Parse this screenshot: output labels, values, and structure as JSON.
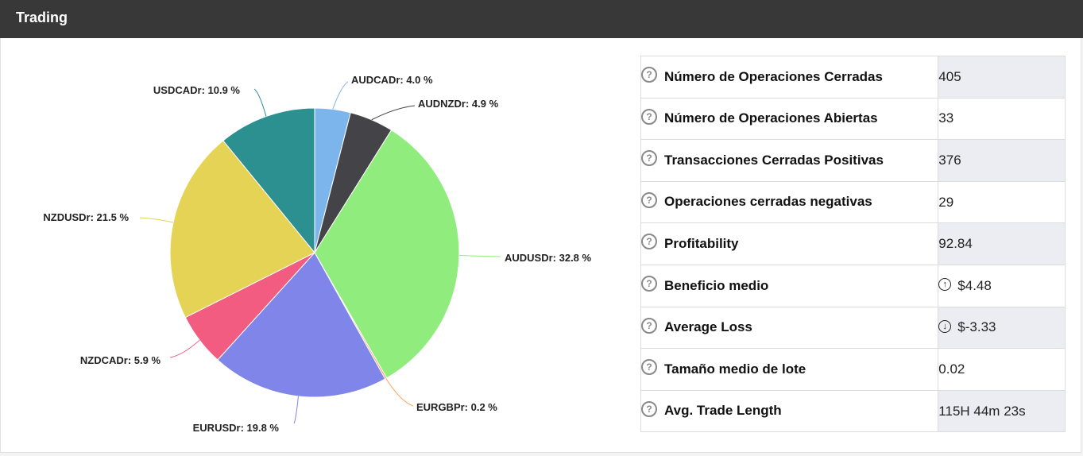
{
  "header": {
    "title": "Trading"
  },
  "chart_data": {
    "type": "pie",
    "title": "",
    "slices": [
      {
        "label": "AUDCADr",
        "value": 4.0,
        "color": "#7cb5ec",
        "display": "AUDCADr: 4.0 %"
      },
      {
        "label": "AUDNZDr",
        "value": 4.9,
        "color": "#434348",
        "display": "AUDNZDr: 4.9 %"
      },
      {
        "label": "AUDUSDr",
        "value": 32.8,
        "color": "#90ed7d",
        "display": "AUDUSDr: 32.8 %"
      },
      {
        "label": "EURGBPr",
        "value": 0.2,
        "color": "#f7a35c",
        "display": "EURGBPr: 0.2 %"
      },
      {
        "label": "EURUSDr",
        "value": 19.8,
        "color": "#8085e9",
        "display": "EURUSDr: 19.8 %"
      },
      {
        "label": "NZDCADr",
        "value": 5.9,
        "color": "#f15c80",
        "display": "NZDCADr: 5.9 %"
      },
      {
        "label": "NZDUSDr",
        "value": 21.5,
        "color": "#e4d354",
        "display": "NZDUSDr: 21.5 %"
      },
      {
        "label": "USDCADr",
        "value": 10.9,
        "color": "#2b908f",
        "display": "USDCADr: 10.9 %"
      }
    ]
  },
  "stats": [
    {
      "label": "Número de Operaciones Cerradas",
      "value": "405"
    },
    {
      "label": "Número de Operaciones Abiertas",
      "value": "33"
    },
    {
      "label": "Transacciones Cerradas Positivas",
      "value": "376"
    },
    {
      "label": "Operaciones cerradas negativas",
      "value": "29"
    },
    {
      "label": "Profitability",
      "value": "92.84"
    },
    {
      "label": "Beneficio medio",
      "value": "$4.48"
    },
    {
      "label": "Average Loss",
      "value": "$-3.33"
    },
    {
      "label": "Tamaño medio de lote",
      "value": "0.02"
    },
    {
      "label": "Avg. Trade Length",
      "value": "115H 44m 23s"
    }
  ],
  "colors": {
    "positive": "#2e8b4a",
    "negative": "#d0202a",
    "header": "#383838"
  }
}
